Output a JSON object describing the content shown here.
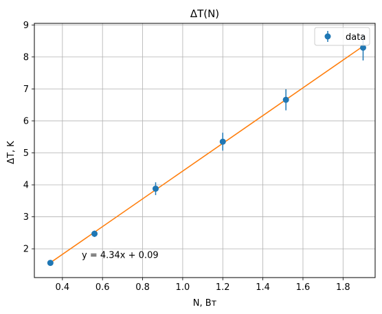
{
  "chart_data": {
    "type": "scatter",
    "title": "ΔT(N)",
    "xlabel": "N, Вт",
    "ylabel": "ΔT, K",
    "xlim": [
      0.26,
      1.96
    ],
    "ylim": [
      1.1,
      9.05
    ],
    "xticks": [
      "0.4",
      "0.6",
      "0.8",
      "1.0",
      "1.2",
      "1.4",
      "1.6",
      "1.8"
    ],
    "yticks": [
      "2",
      "3",
      "4",
      "5",
      "6",
      "7",
      "8",
      "9"
    ],
    "grid": true,
    "legend": {
      "position": "top-right",
      "entries": [
        "data"
      ]
    },
    "series": [
      {
        "name": "data",
        "x": [
          0.34,
          0.56,
          0.865,
          1.2,
          1.515,
          1.9
        ],
        "y": [
          1.56,
          2.47,
          3.88,
          5.35,
          6.66,
          8.29
        ],
        "yerr": [
          0.06,
          0.1,
          0.2,
          0.28,
          0.33,
          0.4
        ],
        "color": "#1f77b4"
      }
    ],
    "fit": {
      "slope": 4.34,
      "intercept": 0.09,
      "x_range": [
        0.34,
        1.9
      ],
      "color": "#ff7f0e"
    },
    "annotation": {
      "text": "y = 4.34x + 0.09",
      "x": 0.5,
      "y": 1.75
    }
  }
}
